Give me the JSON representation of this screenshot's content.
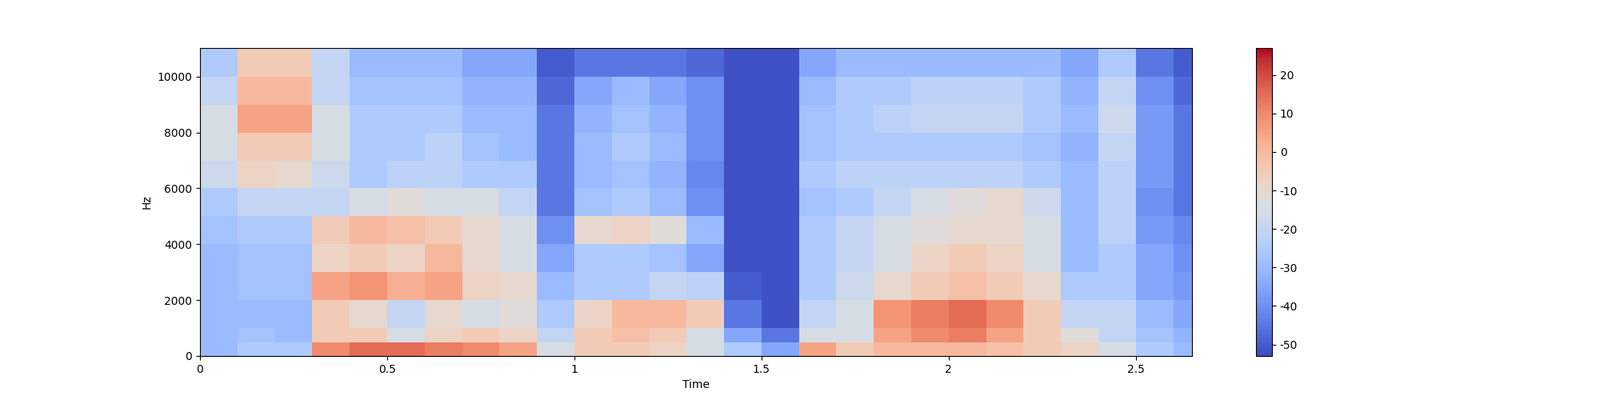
{
  "chart_data": {
    "type": "heatmap",
    "x_label": "Time",
    "y_label": "Hz",
    "color": "coolwarm",
    "xlim": [
      0,
      2.65
    ],
    "ylim": [
      0,
      11025
    ],
    "xticks": [
      0,
      0.5,
      1,
      1.5,
      2,
      2.5
    ],
    "yticks": [
      0,
      2000,
      4000,
      6000,
      8000,
      10000
    ],
    "x_edges": [
      0,
      0.1,
      0.2,
      0.3,
      0.4,
      0.5,
      0.6,
      0.7,
      0.8,
      0.9,
      1.0,
      1.1,
      1.2,
      1.3,
      1.4,
      1.5,
      1.6,
      1.7,
      1.8,
      1.9,
      2.0,
      2.1,
      2.2,
      2.3,
      2.4,
      2.5,
      2.6,
      2.65
    ],
    "y_edges": [
      0,
      500,
      1000,
      2000,
      3000,
      4000,
      5000,
      6000,
      7000,
      8000,
      9000,
      10000,
      11025
    ],
    "cells": [
      [
        -30,
        -25,
        -25,
        10,
        15,
        15,
        12,
        10,
        5,
        -15,
        -5,
        -5,
        -8,
        -15,
        -25,
        -35,
        5,
        -5,
        0,
        0,
        0,
        -2,
        -5,
        -8,
        -15,
        -25,
        -30
      ],
      [
        -30,
        -28,
        -30,
        -5,
        -5,
        -15,
        -8,
        -5,
        -8,
        -20,
        -5,
        -2,
        -5,
        -15,
        -35,
        -45,
        -15,
        -15,
        5,
        10,
        12,
        5,
        -5,
        -12,
        -20,
        -28,
        -32
      ],
      [
        -30,
        -30,
        -30,
        -5,
        -10,
        -20,
        -10,
        -15,
        -12,
        -25,
        -8,
        0,
        0,
        -5,
        -45,
        -52,
        -20,
        -15,
        8,
        12,
        15,
        10,
        -5,
        -20,
        -20,
        -30,
        -35
      ],
      [
        -30,
        -28,
        -28,
        5,
        8,
        2,
        5,
        -8,
        -10,
        -30,
        -25,
        -25,
        -20,
        -22,
        -50,
        -52,
        -25,
        -18,
        -10,
        -5,
        -2,
        -5,
        -10,
        -25,
        -25,
        -35,
        -38
      ],
      [
        -30,
        -28,
        -28,
        -8,
        -5,
        -8,
        0,
        -10,
        -15,
        -35,
        -25,
        -25,
        -28,
        -35,
        -52,
        -52,
        -25,
        -20,
        -15,
        -8,
        -5,
        -8,
        -15,
        -30,
        -25,
        -35,
        -40
      ],
      [
        -28,
        -25,
        -25,
        -5,
        0,
        -2,
        -5,
        -10,
        -15,
        -40,
        -10,
        -8,
        -12,
        -30,
        -52,
        -52,
        -25,
        -20,
        -15,
        -12,
        -10,
        -10,
        -15,
        -30,
        -22,
        -38,
        -42
      ],
      [
        -25,
        -20,
        -20,
        -20,
        -15,
        -12,
        -15,
        -15,
        -20,
        -45,
        -28,
        -25,
        -30,
        -40,
        -52,
        -52,
        -28,
        -25,
        -20,
        -15,
        -12,
        -10,
        -18,
        -30,
        -22,
        -40,
        -45
      ],
      [
        -18,
        -8,
        -10,
        -18,
        -25,
        -22,
        -22,
        -25,
        -25,
        -45,
        -30,
        -28,
        -32,
        -42,
        -52,
        -52,
        -25,
        -22,
        -22,
        -22,
        -22,
        -22,
        -25,
        -30,
        -22,
        -38,
        -45
      ],
      [
        -15,
        -5,
        -5,
        -15,
        -25,
        -25,
        -22,
        -28,
        -30,
        -45,
        -30,
        -25,
        -30,
        -40,
        -52,
        -52,
        -28,
        -25,
        -25,
        -25,
        -25,
        -25,
        -28,
        -32,
        -20,
        -38,
        -45
      ],
      [
        -15,
        5,
        5,
        -15,
        -25,
        -25,
        -25,
        -30,
        -30,
        -45,
        -32,
        -28,
        -32,
        -40,
        -52,
        -52,
        -28,
        -25,
        -22,
        -20,
        -20,
        -20,
        -25,
        -30,
        -18,
        -38,
        -45
      ],
      [
        -20,
        0,
        0,
        -20,
        -28,
        -28,
        -28,
        -32,
        -32,
        -48,
        -35,
        -30,
        -35,
        -40,
        -52,
        -52,
        -30,
        -25,
        -25,
        -22,
        -22,
        -22,
        -25,
        -32,
        -20,
        -40,
        -48
      ],
      [
        -25,
        -5,
        -5,
        -20,
        -30,
        -30,
        -30,
        -35,
        -35,
        -50,
        -45,
        -45,
        -45,
        -48,
        -52,
        -52,
        -35,
        -30,
        -30,
        -30,
        -30,
        -30,
        -30,
        -35,
        -25,
        -45,
        -50
      ]
    ],
    "colorbar": {
      "range": [
        -53,
        27
      ],
      "ticks": [
        -50,
        -40,
        -30,
        -20,
        -10,
        0,
        10,
        20
      ]
    }
  }
}
